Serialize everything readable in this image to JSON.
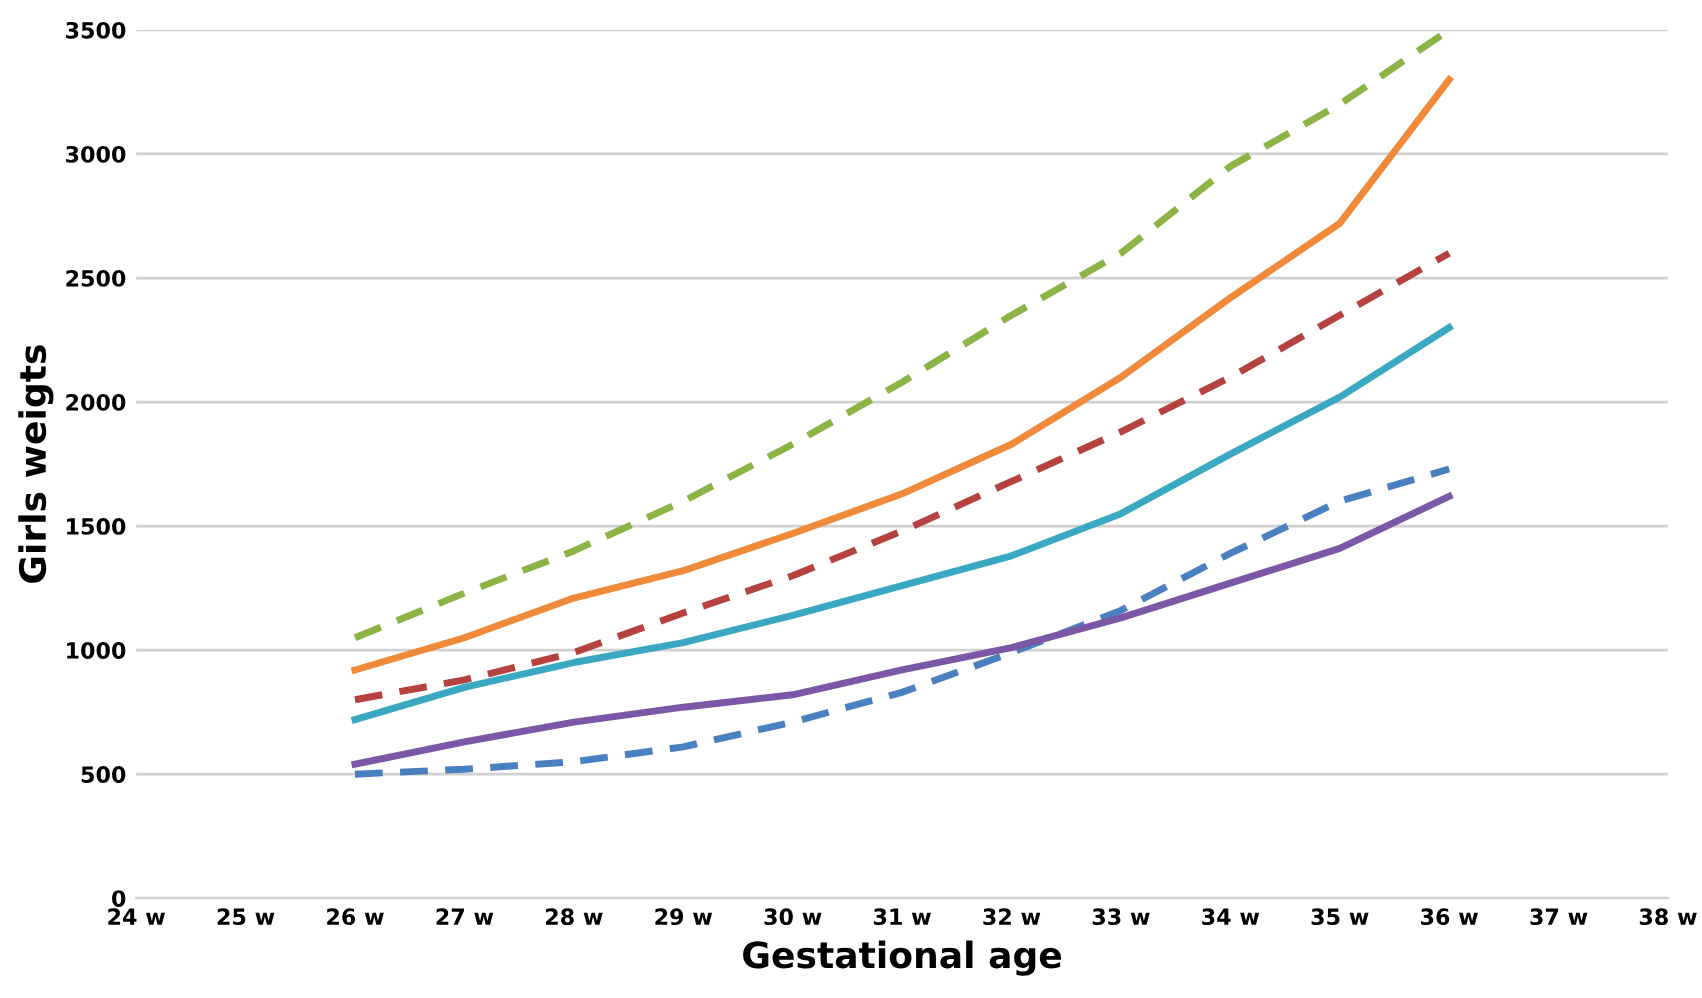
{
  "chart_data": {
    "type": "line",
    "xlabel": "Gestational age",
    "ylabel": "Girls weigts",
    "categories": [
      "24 w",
      "25 w",
      "26 w",
      "27 w",
      "28 w",
      "29 w",
      "30 w",
      "31 w",
      "32 w",
      "33 w",
      "34 w",
      "35 w",
      "36 w",
      "37 w",
      "38 w"
    ],
    "series": [
      {
        "color": "#8cb346",
        "line_style": "dashed",
        "values": [
          null,
          null,
          1050,
          1230,
          1400,
          1600,
          1830,
          2080,
          2350,
          2600,
          2950,
          3200,
          3500,
          null,
          null
        ]
      },
      {
        "color": "#f08a3a",
        "line_style": "solid",
        "values": [
          null,
          null,
          920,
          1050,
          1210,
          1320,
          1470,
          1630,
          1830,
          2100,
          2420,
          2720,
          3300,
          null,
          null
        ]
      },
      {
        "color": "#b5423f",
        "line_style": "dashed",
        "values": [
          null,
          null,
          800,
          880,
          990,
          1150,
          1300,
          1480,
          1680,
          1880,
          2100,
          2350,
          2600,
          null,
          null
        ]
      },
      {
        "color": "#3aa8c1",
        "line_style": "solid",
        "values": [
          null,
          null,
          720,
          850,
          950,
          1030,
          1140,
          1260,
          1380,
          1550,
          1790,
          2020,
          2300,
          null,
          null
        ]
      },
      {
        "color": "#4a7fc0",
        "line_style": "dashed",
        "values": [
          null,
          null,
          500,
          520,
          550,
          610,
          710,
          830,
          990,
          1160,
          1390,
          1600,
          1730,
          null,
          null
        ]
      },
      {
        "color": "#7b57a6",
        "line_style": "solid",
        "values": [
          null,
          null,
          540,
          630,
          710,
          770,
          820,
          920,
          1010,
          1130,
          1270,
          1410,
          1620,
          null,
          null
        ]
      }
    ],
    "ylim": [
      0,
      3500
    ],
    "yticks": [
      0,
      500,
      1000,
      1500,
      2000,
      2500,
      3000,
      3500
    ],
    "grid": "y",
    "legend": false
  }
}
